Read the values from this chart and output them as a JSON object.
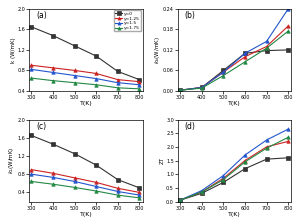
{
  "T": [
    300,
    400,
    500,
    600,
    700,
    800
  ],
  "legend_labels": [
    "y=0",
    "y=1.25",
    "y=1.5",
    "y=1.75"
  ],
  "colors": [
    "#333333",
    "#cc2222",
    "#2255cc",
    "#228844"
  ],
  "markers": [
    "s",
    "^",
    "^",
    "^"
  ],
  "a_data": [
    [
      1.65,
      1.48,
      1.28,
      1.08,
      0.78,
      0.62
    ],
    [
      0.9,
      0.85,
      0.8,
      0.74,
      0.62,
      0.58
    ],
    [
      0.82,
      0.76,
      0.7,
      0.64,
      0.56,
      0.52
    ],
    [
      0.65,
      0.6,
      0.56,
      0.52,
      0.46,
      0.44
    ]
  ],
  "b_data": [
    [
      0.002,
      0.01,
      0.06,
      0.11,
      0.118,
      0.12
    ],
    [
      0.002,
      0.01,
      0.055,
      0.1,
      0.13,
      0.19
    ],
    [
      0.002,
      0.01,
      0.055,
      0.11,
      0.145,
      0.24
    ],
    [
      0.002,
      0.008,
      0.045,
      0.085,
      0.125,
      0.175
    ]
  ],
  "c_data": [
    [
      1.65,
      1.46,
      1.25,
      1.0,
      0.68,
      0.5
    ],
    [
      0.9,
      0.82,
      0.72,
      0.62,
      0.49,
      0.4
    ],
    [
      0.8,
      0.73,
      0.64,
      0.53,
      0.42,
      0.34
    ],
    [
      0.64,
      0.58,
      0.51,
      0.43,
      0.34,
      0.28
    ]
  ],
  "d_data": [
    [
      0.05,
      0.3,
      0.7,
      1.2,
      1.55,
      1.6
    ],
    [
      0.05,
      0.35,
      0.85,
      1.5,
      2.0,
      2.2
    ],
    [
      0.05,
      0.4,
      0.95,
      1.7,
      2.25,
      2.65
    ],
    [
      0.05,
      0.35,
      0.8,
      1.45,
      1.95,
      2.35
    ]
  ],
  "a_ylim": [
    0.4,
    2.0
  ],
  "b_ylim": [
    0.0,
    0.24
  ],
  "c_ylim": [
    0.2,
    2.0
  ],
  "d_ylim": [
    0.0,
    3.0
  ],
  "a_yticks": [
    0.4,
    0.8,
    1.2,
    1.6,
    2.0
  ],
  "b_yticks": [
    0.0,
    0.06,
    0.12,
    0.18,
    0.24
  ],
  "c_yticks": [
    0.4,
    0.8,
    1.2,
    1.6,
    2.0
  ],
  "d_yticks": [
    0.0,
    0.5,
    1.0,
    1.5,
    2.0,
    2.5,
    3.0
  ],
  "xlabel": "T(K)",
  "panel_labels": [
    "(a)",
    "(b)",
    "(c)",
    "(d)"
  ]
}
